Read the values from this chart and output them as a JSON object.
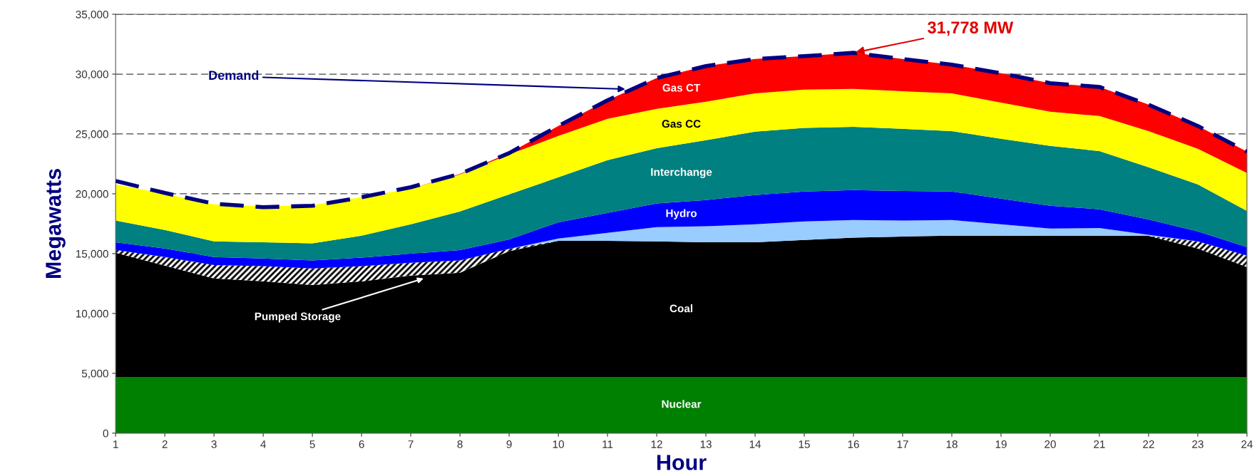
{
  "chart_data": {
    "type": "area",
    "stacked": true,
    "xlabel": "Hour",
    "ylabel": "Megawatts",
    "x": [
      1,
      2,
      3,
      4,
      5,
      6,
      7,
      8,
      9,
      10,
      11,
      12,
      13,
      14,
      15,
      16,
      17,
      18,
      19,
      20,
      21,
      22,
      23,
      24
    ],
    "xlim": [
      1,
      24
    ],
    "xticks": [
      1,
      2,
      3,
      4,
      5,
      6,
      7,
      8,
      9,
      10,
      11,
      12,
      13,
      14,
      15,
      16,
      17,
      18,
      19,
      20,
      21,
      22,
      23,
      24
    ],
    "ylim": [
      0,
      35000
    ],
    "yticks": [
      {
        "value": 0,
        "label": "0"
      },
      {
        "value": 5000,
        "label": "5,000"
      },
      {
        "value": 10000,
        "label": "10,000"
      },
      {
        "value": 15000,
        "label": "15,000"
      },
      {
        "value": 20000,
        "label": "20,000"
      },
      {
        "value": 25000,
        "label": "25,000"
      },
      {
        "value": 30000,
        "label": "30,000"
      },
      {
        "value": 35000,
        "label": "35,000"
      }
    ],
    "grid": "y",
    "legend": false,
    "series": [
      {
        "name": "Nuclear",
        "color": "#008000",
        "values": [
          4700,
          4700,
          4700,
          4700,
          4700,
          4700,
          4700,
          4700,
          4700,
          4700,
          4700,
          4700,
          4700,
          4700,
          4700,
          4700,
          4700,
          4700,
          4700,
          4700,
          4700,
          4700,
          4700,
          4700
        ]
      },
      {
        "name": "Coal",
        "color": "#000000",
        "values": [
          10370,
          9300,
          8230,
          7990,
          7680,
          7990,
          8470,
          8700,
          10500,
          11370,
          11370,
          11320,
          11250,
          11250,
          11440,
          11630,
          11730,
          11800,
          11800,
          11780,
          11780,
          11780,
          10730,
          9180
        ]
      },
      {
        "name": "Pumped Storage",
        "color": "#ffffff",
        "values": [
          240,
          710,
          1120,
          1260,
          1380,
          1260,
          1070,
          1030,
          200,
          0,
          0,
          0,
          0,
          0,
          0,
          0,
          0,
          0,
          0,
          0,
          0,
          0,
          590,
          950
        ]
      },
      {
        "color": "#99ccff",
        "values": [
          0,
          0,
          0,
          0,
          0,
          0,
          0,
          0,
          0,
          190,
          670,
          1190,
          1340,
          1500,
          1550,
          1480,
          1330,
          1310,
          950,
          620,
          660,
          90,
          0,
          0
        ]
      },
      {
        "name": "Hydro",
        "color": "#0000ff",
        "values": [
          640,
          720,
          660,
          650,
          670,
          720,
          760,
          860,
          790,
          1360,
          1660,
          1980,
          2190,
          2450,
          2500,
          2500,
          2480,
          2380,
          2150,
          1900,
          1570,
          1290,
          840,
          720
        ]
      },
      {
        "name": "Interchange",
        "color": "#008080",
        "values": [
          1810,
          1550,
          1310,
          1350,
          1430,
          1830,
          2450,
          3230,
          3760,
          3760,
          4410,
          4620,
          5000,
          5290,
          5310,
          5290,
          5190,
          5050,
          5000,
          5000,
          4860,
          4350,
          3930,
          3020
        ]
      },
      {
        "name": "Gas CC",
        "color": "#ffff00",
        "values": [
          3030,
          3020,
          3100,
          3000,
          3190,
          3210,
          2980,
          3100,
          3340,
          3450,
          3450,
          3290,
          3210,
          3210,
          3210,
          3160,
          3140,
          3160,
          3020,
          2860,
          2930,
          3030,
          2970,
          3170
        ]
      },
      {
        "name": "Gas CT",
        "color": "#ff0000",
        "values": [
          0,
          0,
          0,
          0,
          0,
          0,
          0,
          50,
          110,
          840,
          1550,
          2570,
          2980,
          2860,
          2790,
          3020,
          2690,
          2390,
          2450,
          2380,
          2430,
          2210,
          1910,
          1780
        ]
      },
      {
        "name": "Demand",
        "type": "line",
        "color": "#000080",
        "line_style": "dashed",
        "values": [
          21070,
          20070,
          19170,
          18880,
          19000,
          19710,
          20550,
          21670,
          23400,
          25670,
          27810,
          29670,
          30670,
          31260,
          31500,
          31780,
          31260,
          30790,
          30070,
          29240,
          28930,
          27450,
          25670,
          23520
        ]
      }
    ],
    "annotations": [
      {
        "text": "31,778 MW",
        "x": 16,
        "y": 31778
      }
    ]
  }
}
